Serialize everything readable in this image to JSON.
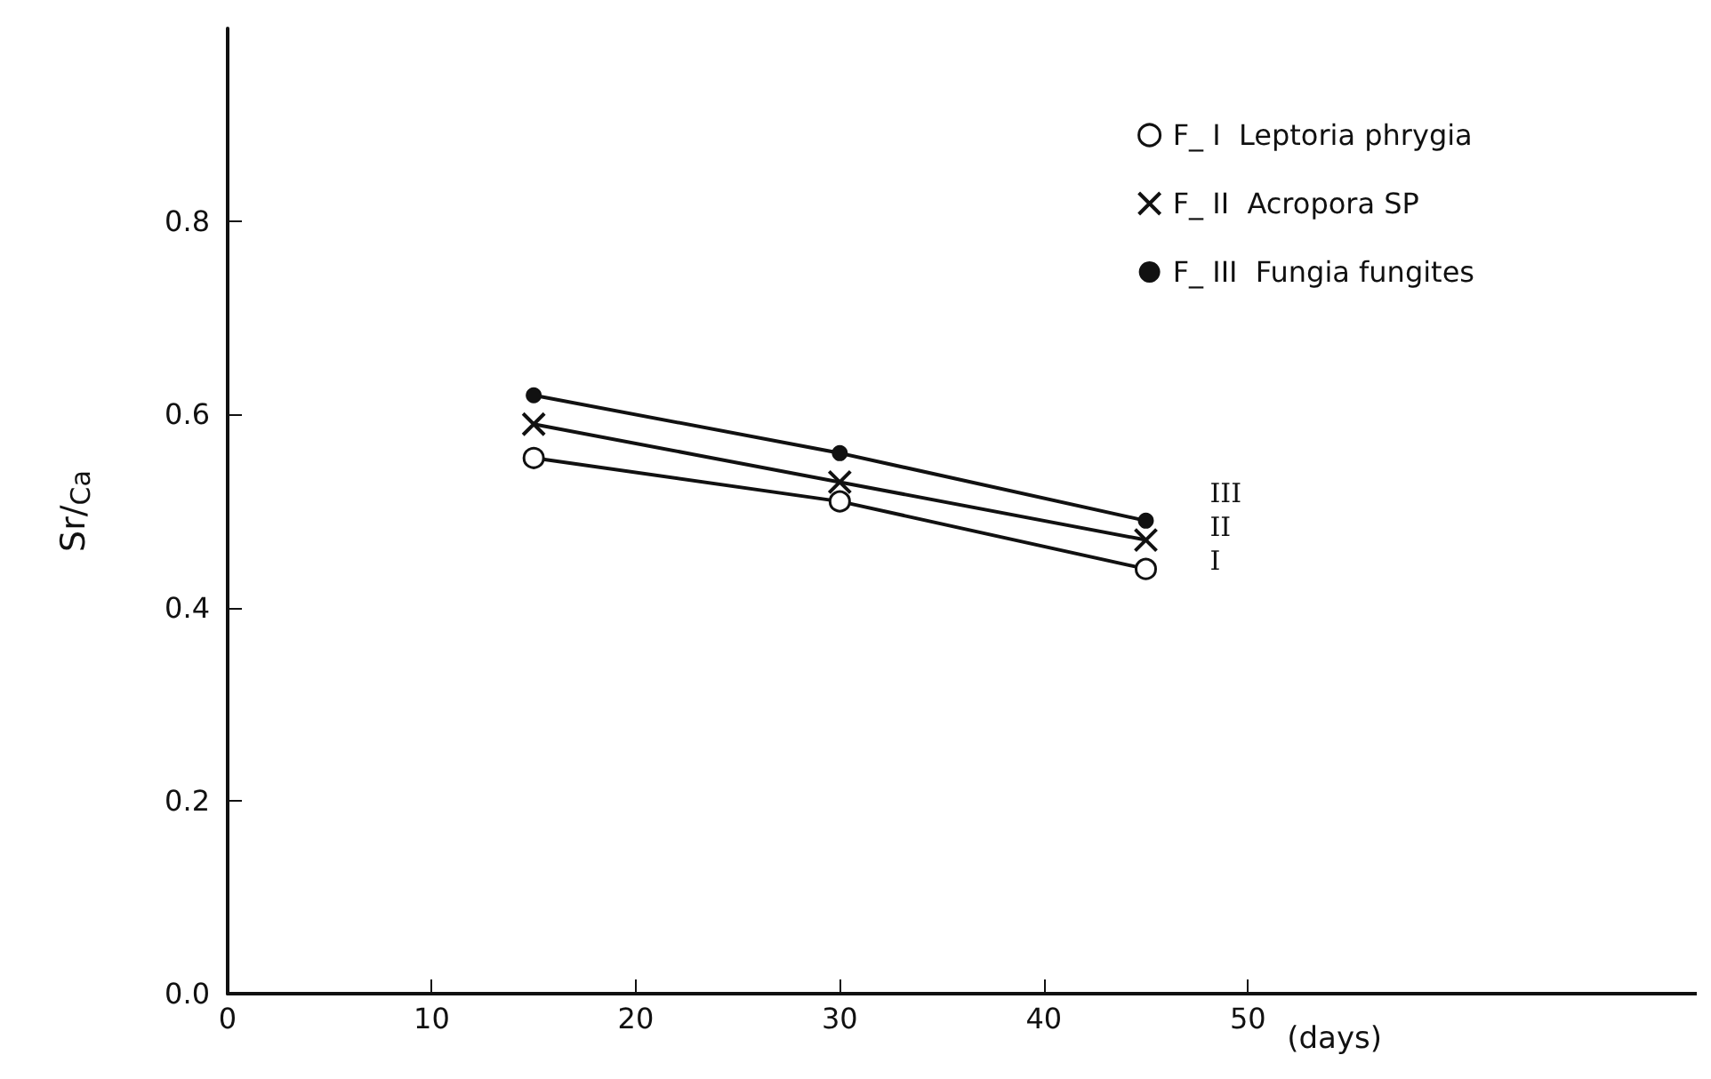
{
  "chart_data": {
    "type": "line",
    "xlabel": "(days)",
    "ylabel": "Sr/$_{Ca}$",
    "x": [
      15,
      30,
      45
    ],
    "series": [
      {
        "name": "F_ I  Leptoria phrygia",
        "color": "#111111",
        "marker": "circle",
        "values": [
          0.555,
          0.51,
          0.44
        ]
      },
      {
        "name": "F_ II  Acropora SP",
        "color": "#111111",
        "marker": "cross",
        "values": [
          0.59,
          0.53,
          0.47
        ]
      },
      {
        "name": "F_ III  Fungia fungites",
        "color": "#111111",
        "marker": "dot",
        "values": [
          0.62,
          0.56,
          0.49
        ]
      }
    ],
    "xlim": [
      0,
      72
    ],
    "xticks": [
      0,
      10,
      20,
      30,
      40,
      50
    ],
    "ylim": [
      0,
      1.0
    ],
    "yticks": [
      {
        "value": 0,
        "label": "0.0"
      },
      {
        "value": 0.2,
        "label": "0.2"
      },
      {
        "value": 0.4,
        "label": "0.4"
      },
      {
        "value": 0.6,
        "label": "0.6"
      },
      {
        "value": 0.8,
        "label": "0.8"
      }
    ],
    "grid": false,
    "legend": "top right",
    "line_style": "solid",
    "annotations": [
      "III",
      "II",
      "I"
    ]
  }
}
